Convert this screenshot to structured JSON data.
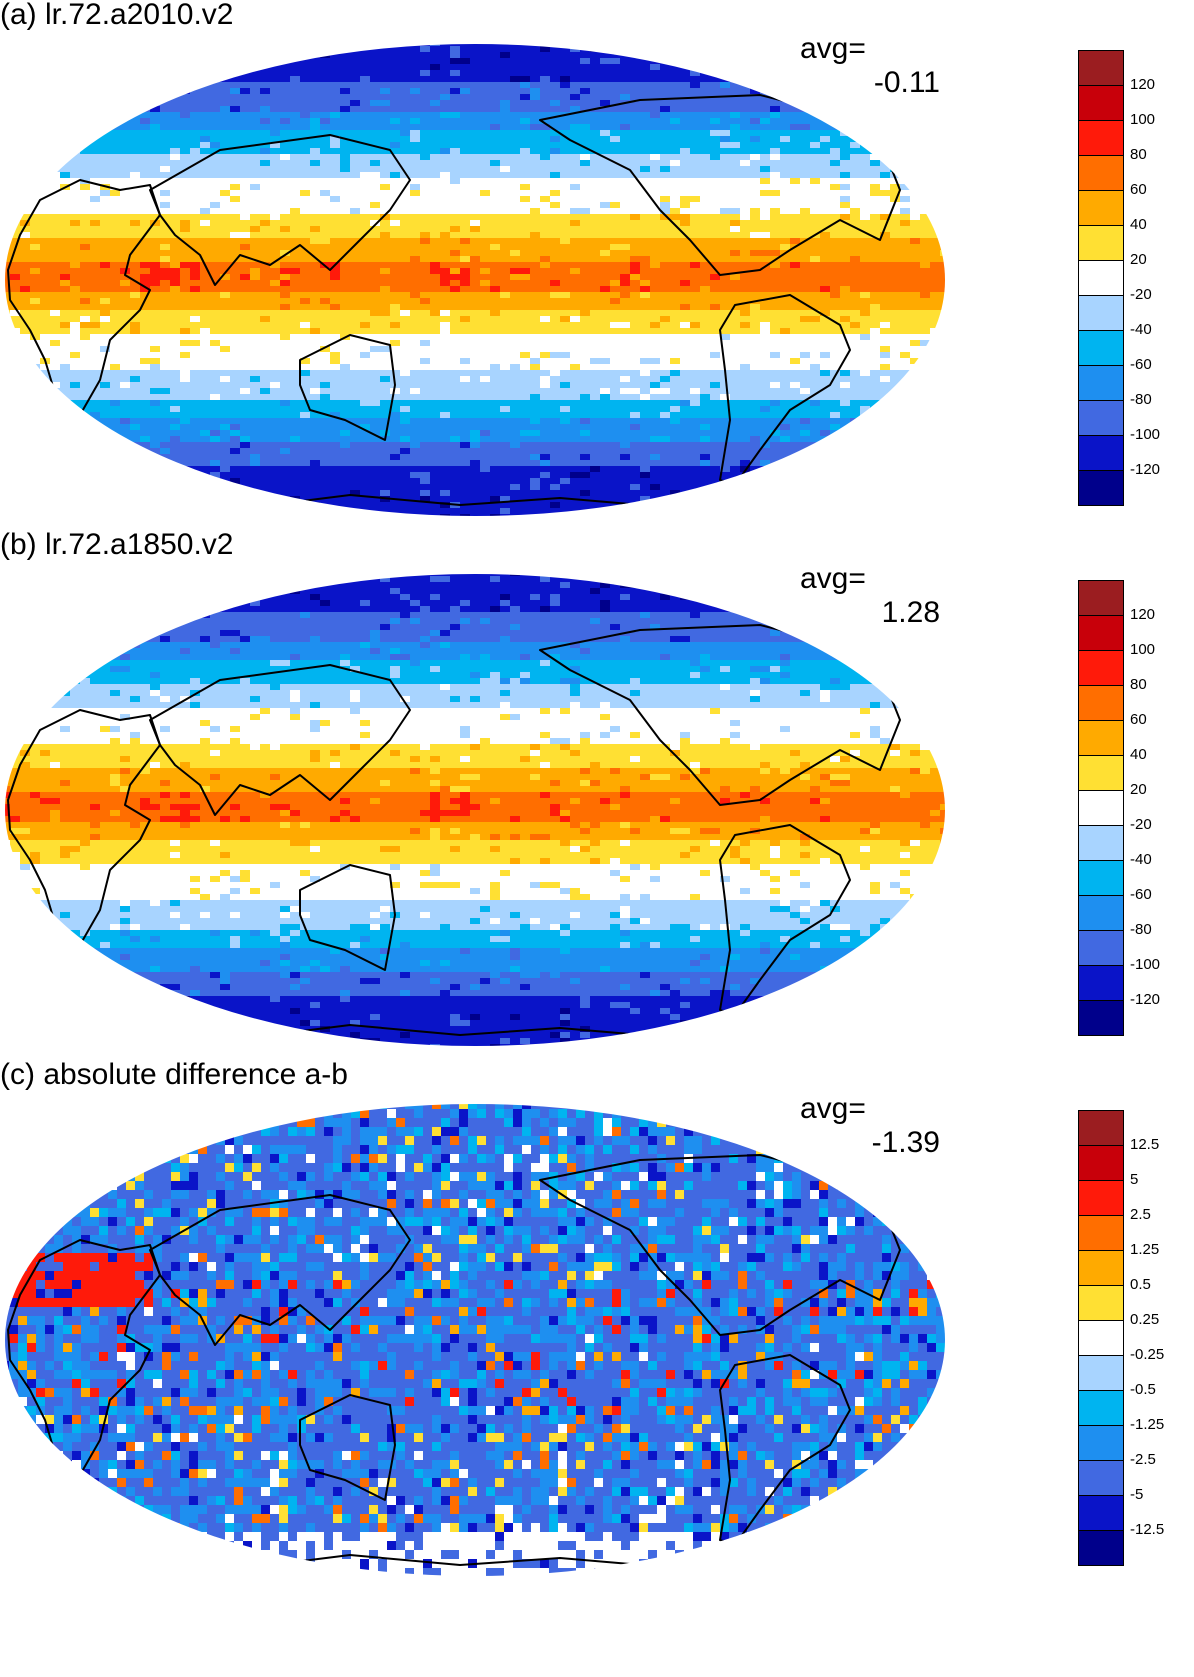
{
  "panels": [
    {
      "title": "(a) lr.72.a2010.v2",
      "avg_label": "avg=",
      "avg_value": "-0.11",
      "colorbar_labels": [
        "120",
        "100",
        "80",
        "60",
        "40",
        "20",
        "-20",
        "-40",
        "-60",
        "-80",
        "-100",
        "-120"
      ]
    },
    {
      "title": "(b) lr.72.a1850.v2",
      "avg_label": "avg=",
      "avg_value": "1.28",
      "colorbar_labels": [
        "120",
        "100",
        "80",
        "60",
        "40",
        "20",
        "-20",
        "-40",
        "-60",
        "-80",
        "-100",
        "-120"
      ]
    },
    {
      "title": "(c) absolute difference a-b",
      "avg_label": "avg=",
      "avg_value": "-1.39",
      "colorbar_labels": [
        "12.5",
        "5",
        "2.5",
        "1.25",
        "0.5",
        "0.25",
        "-0.25",
        "-0.5",
        "-1.25",
        "-2.5",
        "-5",
        "-12.5"
      ]
    }
  ],
  "colors": {
    "palette_top_to_bottom": [
      "#9b1d20",
      "#c8000a",
      "#ff1a0a",
      "#ff6e00",
      "#ffaa00",
      "#ffe033",
      "#ffffff",
      "#a8d4ff",
      "#00b4f0",
      "#1e8ff0",
      "#4169e1",
      "#0a14c8",
      "#00008b"
    ]
  }
}
